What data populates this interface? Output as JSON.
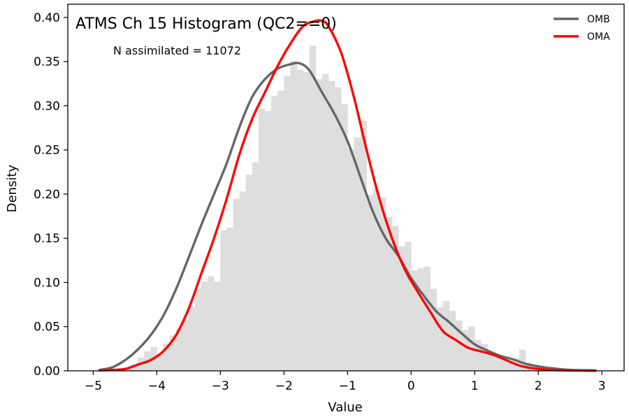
{
  "chart_data": {
    "type": "histogram",
    "title": "ATMS Ch 15 Histogram (QC2==0)",
    "annotation": "N assimilated = 11072",
    "xlabel": "Value",
    "ylabel": "Density",
    "xlim": [
      -5.4,
      3.35
    ],
    "ylim": [
      0,
      0.415
    ],
    "xticks": [
      -5,
      -4,
      -3,
      -2,
      -1,
      0,
      1,
      2,
      3
    ],
    "xtick_labels": [
      "−5",
      "−4",
      "−3",
      "−2",
      "−1",
      "0",
      "1",
      "2",
      "3"
    ],
    "yticks": [
      0.0,
      0.05,
      0.1,
      0.15,
      0.2,
      0.25,
      0.3,
      0.35,
      0.4
    ],
    "ytick_labels": [
      "0.00",
      "0.05",
      "0.10",
      "0.15",
      "0.20",
      "0.25",
      "0.30",
      "0.35",
      "0.40"
    ],
    "grid": false,
    "legend": {
      "position": "top-right",
      "entries": [
        "OMB",
        "OMA"
      ]
    },
    "histogram": {
      "color": "#dedede",
      "bin_start": -4.6,
      "bin_width": 0.1,
      "densities": [
        0.003,
        0.004,
        0.007,
        0.015,
        0.022,
        0.027,
        0.019,
        0.031,
        0.04,
        0.047,
        0.058,
        0.073,
        0.093,
        0.101,
        0.107,
        0.101,
        0.159,
        0.162,
        0.195,
        0.203,
        0.222,
        0.236,
        0.297,
        0.294,
        0.311,
        0.317,
        0.334,
        0.351,
        0.341,
        0.338,
        0.368,
        0.33,
        0.336,
        0.328,
        0.321,
        0.302,
        0.251,
        0.264,
        0.283,
        0.199,
        0.206,
        0.196,
        0.174,
        0.164,
        0.141,
        0.146,
        0.114,
        0.116,
        0.118,
        0.093,
        0.072,
        0.079,
        0.068,
        0.057,
        0.046,
        0.05,
        0.035,
        0.03,
        0.019,
        0.016,
        0.014,
        0.011,
        0.014,
        0.024,
        0.009,
        0.007,
        0.005,
        0.004,
        0.003,
        0.002,
        0.002,
        0.001,
        0.001,
        0.001
      ]
    },
    "series": [
      {
        "name": "OMB",
        "color": "#666666",
        "x": [
          -4.9,
          -4.7,
          -4.5,
          -4.3,
          -4.1,
          -3.9,
          -3.7,
          -3.5,
          -3.3,
          -3.1,
          -2.9,
          -2.7,
          -2.5,
          -2.3,
          -2.1,
          -1.9,
          -1.75,
          -1.6,
          -1.4,
          -1.2,
          -1.0,
          -0.8,
          -0.6,
          -0.4,
          -0.2,
          0.0,
          0.2,
          0.4,
          0.6,
          0.8,
          1.0,
          1.2,
          1.4,
          1.6,
          1.8,
          2.0,
          2.2,
          2.5,
          2.9
        ],
        "y": [
          0.001,
          0.004,
          0.012,
          0.024,
          0.04,
          0.062,
          0.092,
          0.128,
          0.165,
          0.2,
          0.235,
          0.276,
          0.31,
          0.33,
          0.342,
          0.347,
          0.348,
          0.34,
          0.315,
          0.29,
          0.26,
          0.22,
          0.18,
          0.15,
          0.13,
          0.105,
          0.085,
          0.067,
          0.055,
          0.042,
          0.03,
          0.023,
          0.017,
          0.013,
          0.008,
          0.005,
          0.003,
          0.001,
          0.0005
        ]
      },
      {
        "name": "OMA",
        "color": "#ff0000",
        "x": [
          -4.9,
          -4.7,
          -4.5,
          -4.3,
          -4.1,
          -3.9,
          -3.7,
          -3.5,
          -3.3,
          -3.1,
          -2.9,
          -2.7,
          -2.5,
          -2.3,
          -2.1,
          -1.9,
          -1.7,
          -1.5,
          -1.4,
          -1.3,
          -1.1,
          -0.9,
          -0.7,
          -0.5,
          -0.3,
          -0.1,
          0.1,
          0.3,
          0.5,
          0.7,
          0.9,
          1.1,
          1.3,
          1.5,
          1.7,
          1.9,
          2.2,
          2.5,
          2.9
        ],
        "y": [
          0.0005,
          0.001,
          0.002,
          0.007,
          0.012,
          0.022,
          0.04,
          0.07,
          0.11,
          0.15,
          0.195,
          0.245,
          0.285,
          0.315,
          0.345,
          0.37,
          0.39,
          0.396,
          0.396,
          0.39,
          0.36,
          0.31,
          0.25,
          0.195,
          0.15,
          0.115,
          0.09,
          0.067,
          0.045,
          0.035,
          0.026,
          0.022,
          0.018,
          0.012,
          0.006,
          0.003,
          0.001,
          0.0005,
          0.0001
        ]
      }
    ]
  }
}
